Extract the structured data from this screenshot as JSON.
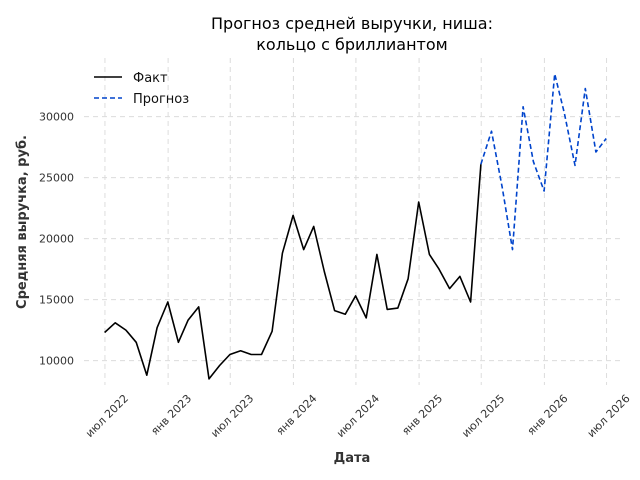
{
  "chart_data": {
    "type": "line",
    "title_lines": [
      "Прогноз средней выручки, ниша:",
      "кольцо с бриллиантом"
    ],
    "xlabel": "Дата",
    "ylabel": "Средняя выручка, руб.",
    "ylim": [
      8000,
      34800
    ],
    "xlim": [
      "2022-05-01",
      "2026-08-15"
    ],
    "grid": true,
    "legend_position": "top-left",
    "y_ticks": [
      10000,
      15000,
      20000,
      25000,
      30000
    ],
    "y_tick_labels": [
      "10000",
      "15000",
      "20000",
      "25000",
      "30000"
    ],
    "x_ticks": [
      "2022-07-01",
      "2023-01-01",
      "2023-07-01",
      "2024-01-01",
      "2024-07-01",
      "2025-01-01",
      "2025-07-01",
      "2026-01-01",
      "2026-07-01"
    ],
    "x_tick_labels": [
      "июл 2022",
      "янв 2023",
      "июл 2023",
      "янв 2024",
      "июл 2024",
      "янв 2025",
      "июл 2025",
      "янв 2026",
      "июл 2026"
    ],
    "series": [
      {
        "name": "Факт",
        "color": "#000000",
        "style": "solid",
        "points": [
          [
            "2022-06-30",
            12300
          ],
          [
            "2022-07-31",
            13100
          ],
          [
            "2022-08-31",
            12500
          ],
          [
            "2022-09-30",
            11500
          ],
          [
            "2022-10-31",
            8800
          ],
          [
            "2022-11-30",
            12700
          ],
          [
            "2022-12-31",
            14800
          ],
          [
            "2023-01-31",
            11500
          ],
          [
            "2023-02-28",
            13300
          ],
          [
            "2023-03-31",
            14400
          ],
          [
            "2023-04-30",
            8500
          ],
          [
            "2023-05-31",
            9600
          ],
          [
            "2023-06-30",
            10500
          ],
          [
            "2023-07-31",
            10800
          ],
          [
            "2023-08-31",
            10500
          ],
          [
            "2023-09-30",
            10500
          ],
          [
            "2023-10-31",
            12400
          ],
          [
            "2023-11-30",
            18800
          ],
          [
            "2023-12-31",
            21900
          ],
          [
            "2024-01-31",
            19100
          ],
          [
            "2024-02-29",
            21000
          ],
          [
            "2024-03-31",
            17300
          ],
          [
            "2024-04-30",
            14100
          ],
          [
            "2024-05-31",
            13800
          ],
          [
            "2024-06-30",
            15300
          ],
          [
            "2024-07-31",
            13500
          ],
          [
            "2024-08-31",
            18700
          ],
          [
            "2024-09-30",
            14200
          ],
          [
            "2024-10-31",
            14300
          ],
          [
            "2024-11-30",
            16700
          ],
          [
            "2024-12-31",
            23000
          ],
          [
            "2025-01-31",
            18700
          ],
          [
            "2025-02-28",
            17500
          ],
          [
            "2025-03-31",
            15900
          ],
          [
            "2025-04-30",
            16900
          ],
          [
            "2025-05-31",
            14800
          ],
          [
            "2025-06-30",
            26100
          ]
        ]
      },
      {
        "name": "Прогноз",
        "color": "#0044cc",
        "style": "dashed",
        "points": [
          [
            "2025-06-30",
            26100
          ],
          [
            "2025-07-31",
            28800
          ],
          [
            "2025-08-31",
            24200
          ],
          [
            "2025-09-30",
            19100
          ],
          [
            "2025-10-31",
            30800
          ],
          [
            "2025-11-30",
            26300
          ],
          [
            "2025-12-31",
            23900
          ],
          [
            "2026-01-31",
            33500
          ],
          [
            "2026-02-28",
            30300
          ],
          [
            "2026-03-31",
            26000
          ],
          [
            "2026-04-30",
            32300
          ],
          [
            "2026-05-31",
            27100
          ],
          [
            "2026-06-30",
            28200
          ]
        ]
      }
    ]
  }
}
